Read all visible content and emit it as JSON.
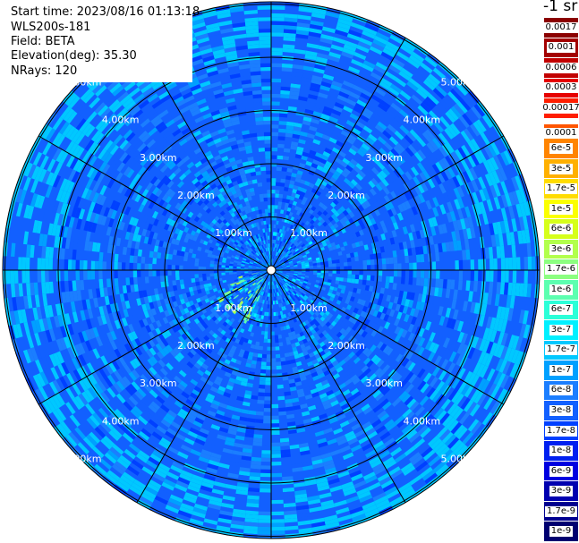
{
  "header": {
    "start_time": "Start time: 2023/08/16 01:13:18",
    "instrument": "WLS200s-181",
    "field": "Field: BETA",
    "elevation": "Elevation(deg): 35.30",
    "nrays": "NRays: 120"
  },
  "colorbar": {
    "units_label": "-1 sr",
    "levels": [
      {
        "label": "0.0017",
        "color": "#8b0000"
      },
      {
        "label": "0.001",
        "color": "#a30000"
      },
      {
        "label": "0.0006",
        "color": "#c20000"
      },
      {
        "label": "0.0003",
        "color": "#e60000"
      },
      {
        "label": "0.00017",
        "color": "#ff1e00"
      },
      {
        "label": "0.0001",
        "color": "#ff5500"
      },
      {
        "label": "6e-5",
        "color": "#ff8400"
      },
      {
        "label": "3e-5",
        "color": "#ffb000"
      },
      {
        "label": "1.7e-5",
        "color": "#ffdc00"
      },
      {
        "label": "1e-5",
        "color": "#fbff00"
      },
      {
        "label": "6e-6",
        "color": "#d6ff1a"
      },
      {
        "label": "3e-6",
        "color": "#b2ff4c"
      },
      {
        "label": "1.7e-6",
        "color": "#8cff80"
      },
      {
        "label": "1e-6",
        "color": "#5cffb0"
      },
      {
        "label": "6e-7",
        "color": "#2bffd8"
      },
      {
        "label": "3e-7",
        "color": "#00f0ff"
      },
      {
        "label": "1.7e-7",
        "color": "#00c8ff"
      },
      {
        "label": "1e-7",
        "color": "#00a0ff"
      },
      {
        "label": "6e-8",
        "color": "#1b7eff"
      },
      {
        "label": "3e-8",
        "color": "#1260ff"
      },
      {
        "label": "1.7e-8",
        "color": "#0040ff"
      },
      {
        "label": "1e-8",
        "color": "#0020f0"
      },
      {
        "label": "6e-9",
        "color": "#0000e0"
      },
      {
        "label": "3e-9",
        "color": "#0000b0"
      },
      {
        "label": "1.7e-9",
        "color": "#000090"
      },
      {
        "label": "1e-9",
        "color": "#000070"
      }
    ]
  },
  "chart_data": {
    "type": "heatmap",
    "projection": "polar-ppi",
    "title": "",
    "field": "BETA",
    "range_rings_km": [
      1,
      2,
      3,
      4,
      5
    ],
    "ring_labels": [
      "1.00km",
      "2.00km",
      "3.00km",
      "4.00km",
      "5.00km"
    ],
    "max_range_km": 5.0,
    "azimuth_spokes_deg": [
      0,
      30,
      60,
      90,
      120,
      150,
      180,
      210,
      240,
      270,
      300,
      330
    ],
    "nrays": 120,
    "dominant_values": {
      "background": "3e-8",
      "typical_range": [
        "1.7e-8",
        "1.7e-7"
      ],
      "near_field_max": "1e-6"
    }
  }
}
